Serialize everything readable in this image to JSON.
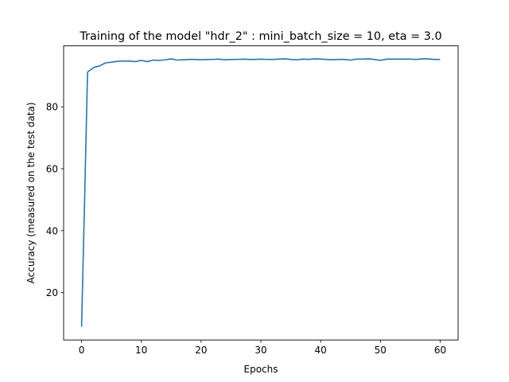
{
  "chart_data": {
    "type": "line",
    "title": "Training of the model \"hdr_2\" : mini_batch_size = 10, eta = 3.0",
    "xlabel": "Epochs",
    "ylabel": "Accuracy (measured on the test data)",
    "xlim": [
      -3,
      63
    ],
    "ylim": [
      4.7,
      99.7
    ],
    "xticks": [
      0,
      10,
      20,
      30,
      40,
      50,
      60
    ],
    "yticks": [
      20,
      40,
      60,
      80
    ],
    "grid": false,
    "line_color": "#1f77b4",
    "series": [
      {
        "x": [
          0,
          0.5,
          1,
          2,
          3,
          4,
          5,
          6,
          7,
          8,
          9,
          10,
          11,
          12,
          13,
          14,
          15,
          16,
          17,
          18,
          19,
          20,
          21,
          22,
          23,
          24,
          25,
          26,
          27,
          28,
          29,
          30,
          31,
          32,
          33,
          34,
          35,
          36,
          37,
          38,
          39,
          40,
          41,
          42,
          43,
          44,
          45,
          46,
          47,
          48,
          49,
          50,
          51,
          52,
          53,
          54,
          55,
          56,
          57,
          58,
          59,
          60
        ],
        "values": [
          9.0,
          49.0,
          91.2,
          92.7,
          93.2,
          94.2,
          94.4,
          94.7,
          94.8,
          94.8,
          94.6,
          95.0,
          94.6,
          95.1,
          95.0,
          95.2,
          95.5,
          95.1,
          95.2,
          95.3,
          95.3,
          95.2,
          95.3,
          95.3,
          95.4,
          95.2,
          95.3,
          95.3,
          95.4,
          95.3,
          95.3,
          95.4,
          95.3,
          95.3,
          95.4,
          95.5,
          95.3,
          95.2,
          95.4,
          95.3,
          95.5,
          95.4,
          95.3,
          95.2,
          95.3,
          95.3,
          95.1,
          95.4,
          95.4,
          95.5,
          95.3,
          95.0,
          95.4,
          95.4,
          95.4,
          95.4,
          95.4,
          95.3,
          95.5,
          95.5,
          95.3,
          95.3
        ]
      }
    ]
  }
}
